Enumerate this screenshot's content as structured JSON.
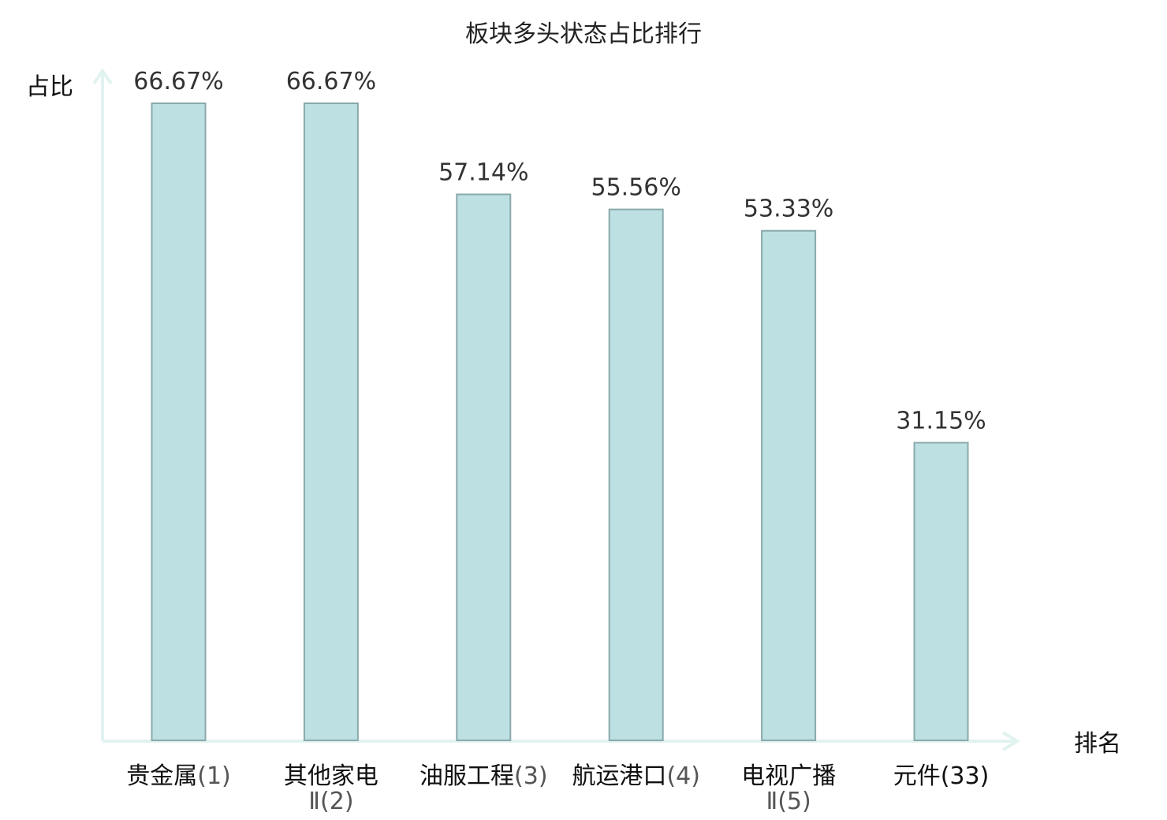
{
  "chart_data": {
    "type": "bar",
    "title": "板块多头状态占比排行",
    "xlabel": "排名",
    "ylabel": "占比",
    "ylim": [
      0,
      66.67
    ],
    "grid": false,
    "categories": [
      {
        "name": "贵金属",
        "rank": "(1)",
        "highlight": false
      },
      {
        "name": "其他家电",
        "name2": "Ⅱ",
        "rank": "(2)",
        "highlight": false
      },
      {
        "name": "油服工程",
        "rank": "(3)",
        "highlight": false
      },
      {
        "name": "航运港口",
        "rank": "(4)",
        "highlight": false
      },
      {
        "name": "电视广播",
        "name2": "Ⅱ",
        "rank": "(5)",
        "highlight": false
      },
      {
        "name": "元件",
        "rank": "(33)",
        "highlight": true
      }
    ],
    "values": [
      66.67,
      66.67,
      57.14,
      55.56,
      53.33,
      31.15
    ],
    "value_labels": [
      "66.67%",
      "66.67%",
      "57.14%",
      "55.56%",
      "53.33%",
      "31.15%"
    ]
  },
  "colors": {
    "bar_fill": "#bde0e3",
    "bar_stroke": "#8aa9aa",
    "axis": "#e1f3f1",
    "highlight": "#e01010"
  }
}
